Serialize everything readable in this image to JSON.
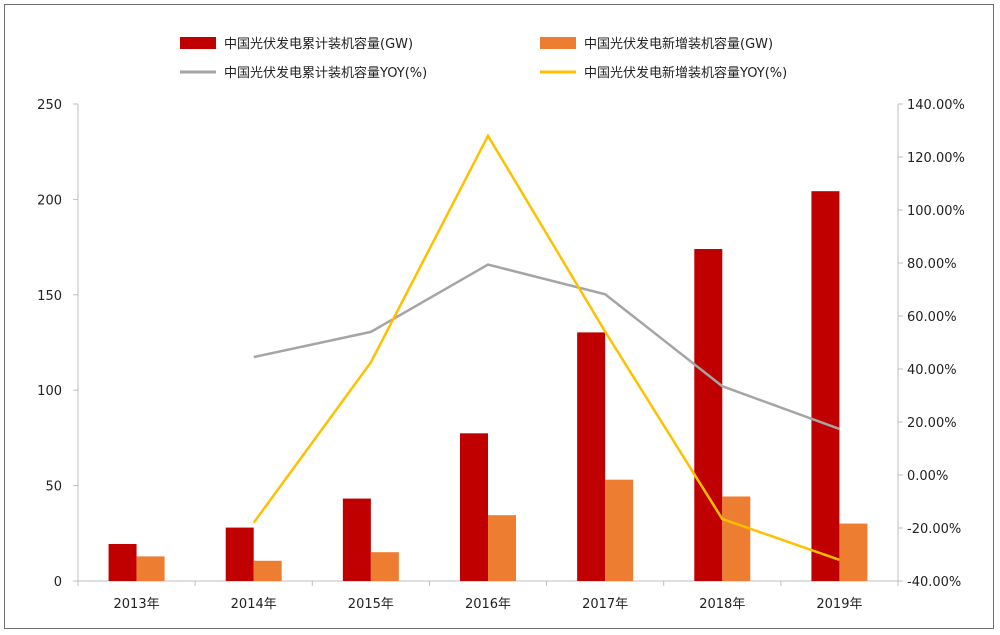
{
  "chart_data": {
    "type": "bar",
    "categories": [
      "2013年",
      "2014年",
      "2015年",
      "2016年",
      "2017年",
      "2018年",
      "2019年"
    ],
    "series": [
      {
        "name": "中国光伏发电累计装机容量(GW)",
        "type": "bar",
        "axis": "left",
        "color": "#c00000",
        "values": [
          19.4,
          28.0,
          43.2,
          77.4,
          130.3,
          174.0,
          204.3
        ]
      },
      {
        "name": "中国光伏发电新增装机容量(GW)",
        "type": "bar",
        "axis": "left",
        "color": "#ed7d31",
        "values": [
          12.9,
          10.6,
          15.1,
          34.5,
          53.1,
          44.3,
          30.1
        ]
      },
      {
        "name": "中国光伏发电累计装机容量YOY(%)",
        "type": "line",
        "axis": "right",
        "color": "#a5a5a5",
        "values": [
          null,
          44.5,
          54.0,
          79.4,
          68.2,
          33.5,
          17.4
        ]
      },
      {
        "name": "中国光伏发电新增装机容量YOY(%)",
        "type": "line",
        "axis": "right",
        "color": "#ffc000",
        "values": [
          null,
          -18.0,
          42.5,
          128.0,
          54.1,
          -16.6,
          -32.0
        ]
      }
    ],
    "y_left": {
      "min": 0,
      "max": 250,
      "ticks": [
        "0",
        "50",
        "100",
        "150",
        "200",
        "250"
      ]
    },
    "y_right": {
      "min": -40,
      "max": 140,
      "ticks": [
        "-40.00%",
        "-20.00%",
        "0.00%",
        "20.00%",
        "40.00%",
        "60.00%",
        "80.00%",
        "100.00%",
        "120.00%",
        "140.00%"
      ]
    },
    "grid": false,
    "legend_position": "top"
  }
}
